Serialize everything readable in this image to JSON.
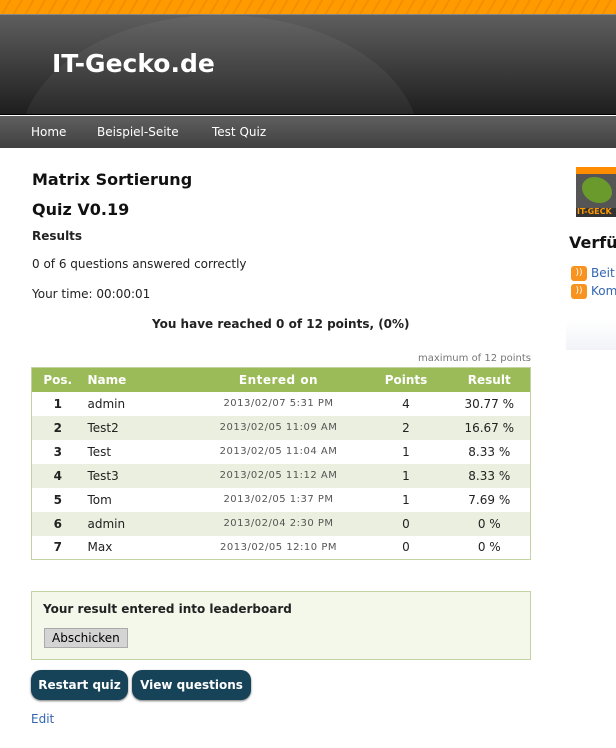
{
  "site": {
    "title": "IT-Gecko.de",
    "logo_text": "IT-GECKO"
  },
  "nav": [
    "Home",
    "Beispiel-Seite",
    "Test Quiz"
  ],
  "quiz": {
    "title": "Matrix Sortierung",
    "version": "Quiz V0.19",
    "results_label": "Results",
    "answered": "0 of 6 questions answered correctly",
    "time": "Your time: 00:00:01",
    "points": "You have reached 0 of 12 points, (0%)"
  },
  "leaderboard": {
    "max_points": "maximum of 12 points",
    "headers": [
      "Pos.",
      "Name",
      "Entered on",
      "Points",
      "Result"
    ],
    "rows": [
      [
        "1",
        "admin",
        "2013/02/07 5:31 PM",
        "4",
        "30.77 %"
      ],
      [
        "2",
        "Test2",
        "2013/02/05 11:09 AM",
        "2",
        "16.67 %"
      ],
      [
        "3",
        "Test",
        "2013/02/05 11:04 AM",
        "1",
        "8.33 %"
      ],
      [
        "4",
        "Test3",
        "2013/02/05 11:12 AM",
        "1",
        "8.33 %"
      ],
      [
        "5",
        "Tom",
        "2013/02/05 1:37 PM",
        "1",
        "7.69 %"
      ],
      [
        "6",
        "admin",
        "2013/02/04 2:30 PM",
        "0",
        "0 %"
      ],
      [
        "7",
        "Max",
        "2013/02/05 12:10 PM",
        "0",
        "0 %"
      ]
    ],
    "entered": "Your result entered into leaderboard",
    "submit": "Abschicken"
  },
  "buttons": {
    "restart": "Restart quiz",
    "view": "View questions"
  },
  "edit": "Edit",
  "sidebar": {
    "heading": "Verfü",
    "links": [
      "Beit",
      "Kom"
    ]
  },
  "colors": {
    "accent": "#9bbb59",
    "button": "#164358",
    "link": "#3365b2"
  }
}
